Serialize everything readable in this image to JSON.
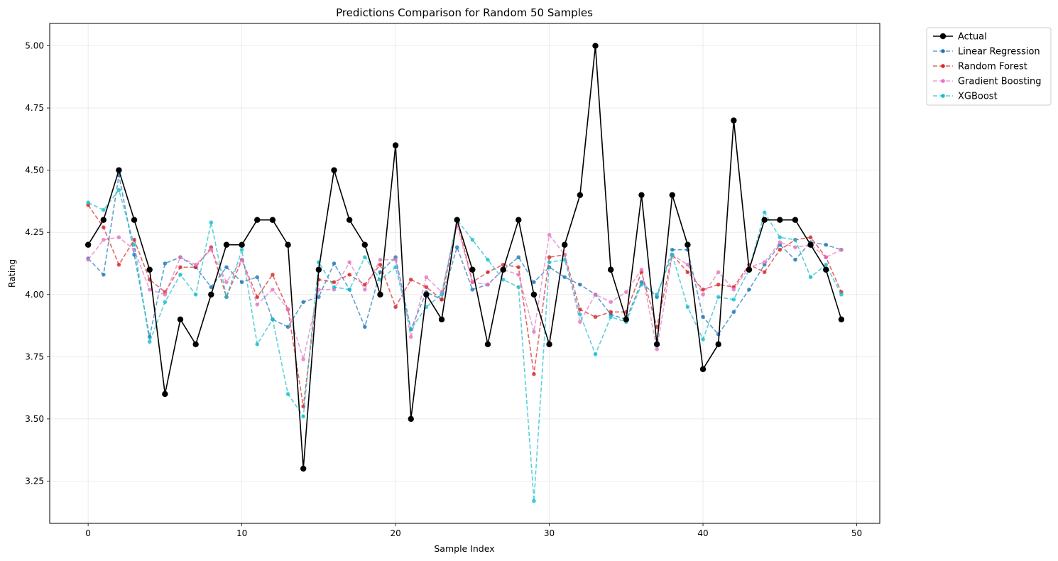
{
  "chart_data": {
    "type": "line",
    "title": "Predictions Comparison for Random 50 Samples",
    "xlabel": "Sample Index",
    "ylabel": "Rating",
    "xlim": [
      -2.5,
      51.5
    ],
    "ylim": [
      3.08,
      5.09
    ],
    "xticks": [
      0,
      10,
      20,
      30,
      40,
      50
    ],
    "yticks": [
      3.25,
      3.5,
      3.75,
      4.0,
      4.25,
      4.5,
      4.75,
      5.0
    ],
    "grid": true,
    "legend_position": "outside-top-right",
    "x": [
      0,
      1,
      2,
      3,
      4,
      5,
      6,
      7,
      8,
      9,
      10,
      11,
      12,
      13,
      14,
      15,
      16,
      17,
      18,
      19,
      20,
      21,
      22,
      23,
      24,
      25,
      26,
      27,
      28,
      29,
      30,
      31,
      32,
      33,
      34,
      35,
      36,
      37,
      38,
      39,
      40,
      41,
      42,
      43,
      44,
      45,
      46,
      47,
      48,
      49
    ],
    "series": [
      {
        "name": "Actual",
        "color": "#000000",
        "style": "solid",
        "values": [
          4.2,
          4.3,
          4.5,
          4.3,
          4.1,
          3.6,
          3.9,
          3.8,
          4.0,
          4.2,
          4.2,
          4.3,
          4.3,
          4.2,
          3.3,
          4.1,
          4.5,
          4.3,
          4.2,
          4.0,
          4.6,
          3.5,
          4.0,
          3.9,
          4.3,
          4.1,
          3.8,
          4.1,
          4.3,
          4.0,
          3.8,
          4.2,
          4.4,
          5.0,
          4.1,
          3.9,
          4.4,
          3.8,
          4.4,
          4.2,
          3.7,
          3.8,
          4.7,
          4.1,
          4.3,
          4.3,
          4.3,
          4.2,
          4.1,
          3.9
        ]
      },
      {
        "name": "Linear Regression",
        "color": "#1f77b4",
        "style": "dashed",
        "values": [
          4.145,
          4.08,
          4.48,
          4.16,
          3.83,
          4.125,
          4.15,
          4.11,
          4.03,
          4.11,
          4.05,
          4.07,
          3.9,
          3.87,
          3.97,
          3.99,
          4.125,
          4.02,
          3.87,
          4.09,
          4.15,
          3.86,
          4.01,
          3.98,
          4.19,
          4.02,
          4.04,
          4.1,
          4.15,
          4.05,
          4.11,
          4.07,
          4.04,
          4.0,
          3.92,
          3.9,
          4.05,
          3.99,
          4.18,
          4.18,
          3.91,
          3.84,
          3.93,
          4.02,
          4.12,
          4.2,
          4.14,
          4.21,
          4.2,
          4.18
        ]
      },
      {
        "name": "Random Forest",
        "color": "#d62728",
        "style": "dashed",
        "values": [
          4.36,
          4.27,
          4.12,
          4.22,
          4.06,
          4.01,
          4.11,
          4.11,
          4.19,
          3.99,
          4.14,
          3.99,
          4.08,
          3.94,
          3.55,
          4.06,
          4.05,
          4.08,
          4.04,
          4.12,
          3.95,
          4.06,
          4.03,
          3.98,
          4.3,
          4.05,
          4.09,
          4.12,
          4.11,
          3.68,
          4.15,
          4.16,
          3.94,
          3.91,
          3.93,
          3.93,
          4.09,
          3.87,
          4.16,
          4.09,
          4.02,
          4.04,
          4.03,
          4.12,
          4.09,
          4.18,
          4.22,
          4.23,
          4.15,
          4.01
        ]
      },
      {
        "name": "Gradient Boosting",
        "color": "#e377c2",
        "style": "dashed",
        "values": [
          4.14,
          4.22,
          4.23,
          4.18,
          4.02,
          4.0,
          4.15,
          4.12,
          4.18,
          4.05,
          4.14,
          3.96,
          4.02,
          3.94,
          3.74,
          4.02,
          4.02,
          4.13,
          4.02,
          4.14,
          4.14,
          3.83,
          4.07,
          4.01,
          4.28,
          4.05,
          4.04,
          4.1,
          4.08,
          3.85,
          4.24,
          4.16,
          3.89,
          4.0,
          3.97,
          4.01,
          4.1,
          3.78,
          4.16,
          4.12,
          4.0,
          4.09,
          4.02,
          4.11,
          4.13,
          4.21,
          4.19,
          4.2,
          4.15,
          4.18
        ]
      },
      {
        "name": "XGBoost",
        "color": "#17becf",
        "style": "dashed",
        "values": [
          4.37,
          4.34,
          4.42,
          4.2,
          3.81,
          3.97,
          4.08,
          4.0,
          4.29,
          3.99,
          4.18,
          3.8,
          3.9,
          3.6,
          3.51,
          4.13,
          4.03,
          4.02,
          4.15,
          4.06,
          4.11,
          3.86,
          3.95,
          4.0,
          4.3,
          4.22,
          4.14,
          4.06,
          4.03,
          3.17,
          4.13,
          4.14,
          3.92,
          3.76,
          3.91,
          3.89,
          4.04,
          4.0,
          4.16,
          3.95,
          3.82,
          3.99,
          3.98,
          4.1,
          4.33,
          4.23,
          4.22,
          4.07,
          4.12,
          4.0
        ]
      }
    ]
  }
}
